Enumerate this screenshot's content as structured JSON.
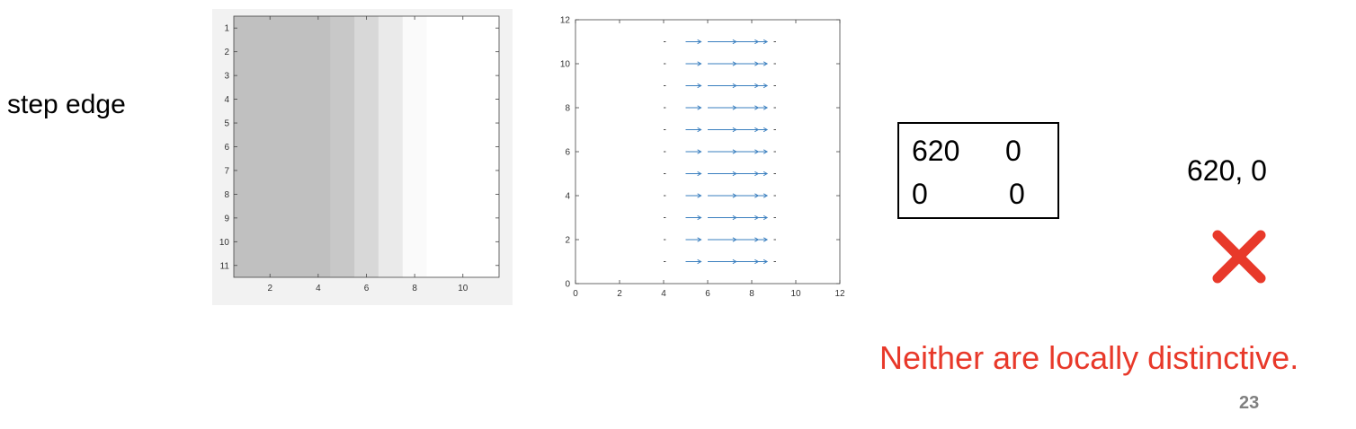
{
  "row_label": "step edge",
  "matrix": {
    "r0c0": "620",
    "r0c1": "0",
    "r1c0": "0",
    "r1c1": "0"
  },
  "eigenvalues_text": "620,   0",
  "reject_icon": "red-x-icon",
  "verdict_text": "Neither are locally distinctive.",
  "page_number": "23",
  "accent_color": "#e8392a",
  "chart_data": [
    {
      "type": "heatmap",
      "x_ticks": [
        "2",
        "4",
        "6",
        "8",
        "10"
      ],
      "y_ticks": [
        "1",
        "2",
        "3",
        "4",
        "5",
        "6",
        "7",
        "8",
        "9",
        "10",
        "11"
      ],
      "xlim": [
        0.5,
        11.5
      ],
      "ylim": [
        0.5,
        11.5
      ],
      "y_reversed": true,
      "column_intensity": [
        192,
        192,
        192,
        192,
        200,
        216,
        234,
        250,
        255,
        255,
        255
      ]
    },
    {
      "type": "quiver",
      "x_ticks": [
        "0",
        "2",
        "4",
        "6",
        "8",
        "10",
        "12"
      ],
      "y_ticks": [
        "0",
        "2",
        "4",
        "6",
        "8",
        "10",
        "12"
      ],
      "xlim": [
        0,
        12
      ],
      "ylim": [
        0,
        12
      ],
      "rows": [
        1,
        2,
        3,
        4,
        5,
        6,
        7,
        8,
        9,
        10,
        11
      ],
      "columns": [
        4,
        5,
        6,
        7,
        8,
        9
      ],
      "dx": [
        0.1,
        0.7,
        1.3,
        1.3,
        0.7,
        0.1
      ]
    }
  ]
}
